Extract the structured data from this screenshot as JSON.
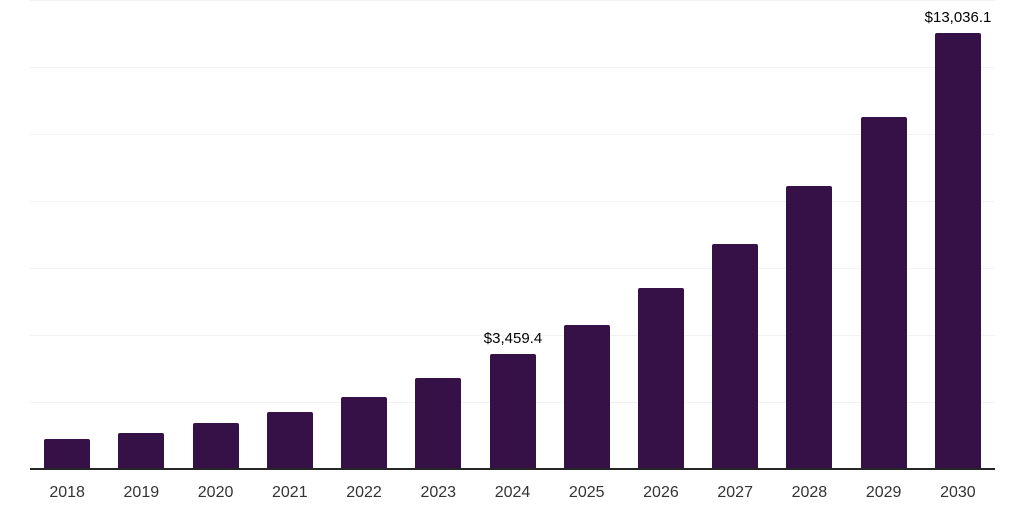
{
  "chart_data": {
    "type": "bar",
    "title": "",
    "xlabel": "",
    "ylabel": "",
    "categories": [
      "2018",
      "2019",
      "2020",
      "2021",
      "2022",
      "2023",
      "2024",
      "2025",
      "2026",
      "2027",
      "2028",
      "2029",
      "2030"
    ],
    "values": [
      930,
      1110,
      1390,
      1740,
      2190,
      2740,
      3459.4,
      4320,
      5420,
      6760,
      8470,
      10540,
      13036.1
    ],
    "annotations": [
      {
        "category": "2024",
        "text": "$3,459.4"
      },
      {
        "category": "2030",
        "text": "$13,036.1"
      }
    ],
    "ylim": [
      0,
      14000
    ],
    "gridline_step": 2000,
    "grid": "horizontal",
    "legend": "none",
    "y_axis_labels_visible": false,
    "colors": {
      "bar": "#351148",
      "axis_line": "#262626",
      "gridline": "#f2f2f2",
      "tick_label": "#333333",
      "data_label": "#000000",
      "background": "#ffffff"
    }
  }
}
